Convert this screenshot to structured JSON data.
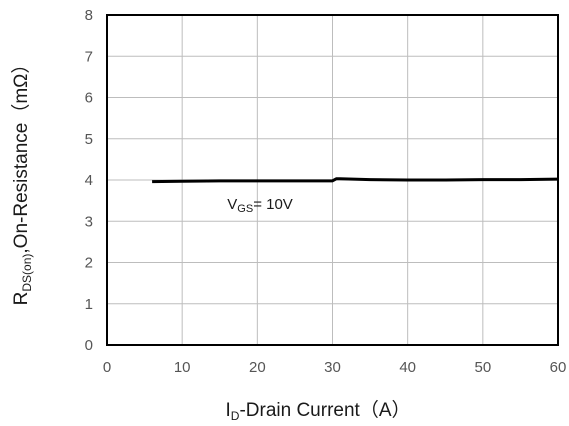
{
  "chart_data": {
    "type": "line",
    "xlabel": {
      "main": "I",
      "sub": "D",
      "rest": "-Drain Current（A）"
    },
    "ylabel": {
      "main": "R",
      "sub": "DS(on)",
      "rest": ",On-Resistance（mΩ）"
    },
    "xlim": [
      0,
      60
    ],
    "ylim": [
      0,
      8
    ],
    "xticks": [
      "0",
      "10",
      "20",
      "30",
      "40",
      "50",
      "60"
    ],
    "yticks": [
      "0",
      "1",
      "2",
      "3",
      "4",
      "5",
      "6",
      "7",
      "8"
    ],
    "grid": true,
    "series": [
      {
        "x": [
          6,
          10,
          15,
          20,
          25,
          30,
          30.5,
          31,
          35,
          40,
          45,
          50,
          55,
          60
        ],
        "y": [
          3.96,
          3.97,
          3.98,
          3.98,
          3.98,
          3.98,
          4.03,
          4.03,
          4.01,
          4.0,
          4.0,
          4.01,
          4.01,
          4.02
        ]
      }
    ],
    "annotations": [
      {
        "main": "V",
        "sub": "GS",
        "rest": "= 10V",
        "x": 16,
        "y": 3.3
      }
    ],
    "colors": {
      "line": "#000000",
      "grid": "#bdbdbd",
      "frame": "#000000"
    }
  }
}
